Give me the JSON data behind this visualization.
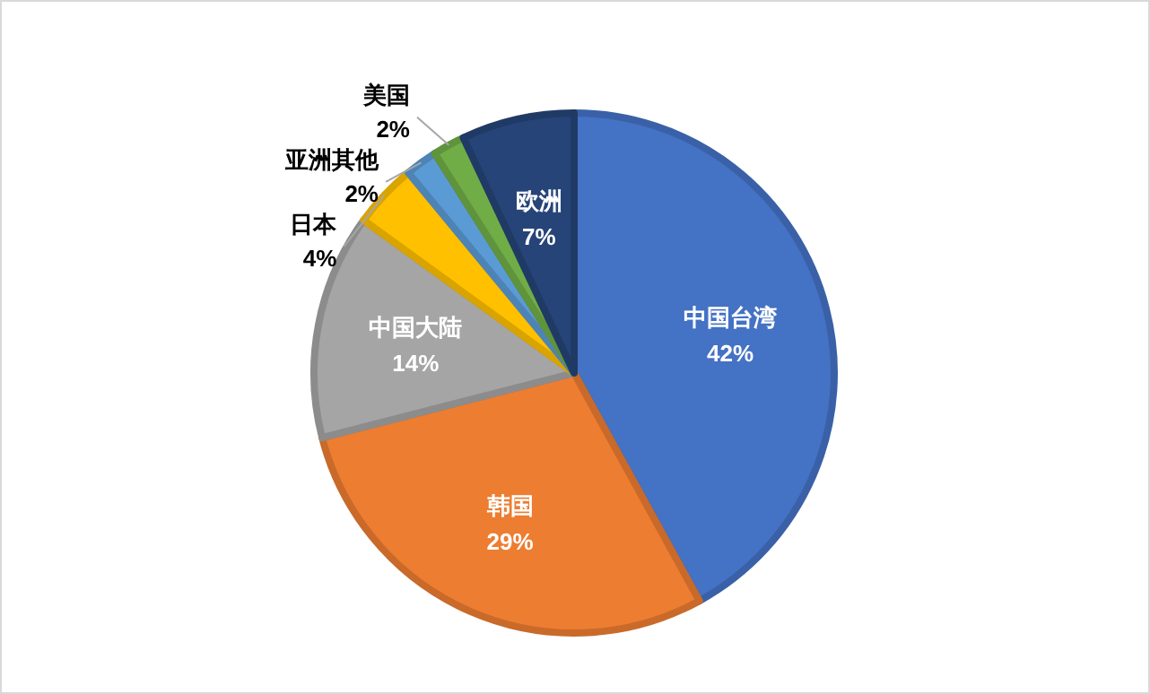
{
  "chart_data": {
    "type": "pie",
    "categories": [
      "中国台湾",
      "韩国",
      "中国大陆",
      "日本",
      "亚洲其他",
      "美国",
      "欧洲"
    ],
    "values": [
      42,
      29,
      14,
      4,
      2,
      2,
      7
    ],
    "value_labels": [
      "42%",
      "29%",
      "14%",
      "4%",
      "2%",
      "2%",
      "7%"
    ],
    "colors": [
      "#4472c4",
      "#ed7d31",
      "#a5a5a5",
      "#ffc000",
      "#5b9bd5",
      "#70ad47",
      "#264478"
    ]
  }
}
